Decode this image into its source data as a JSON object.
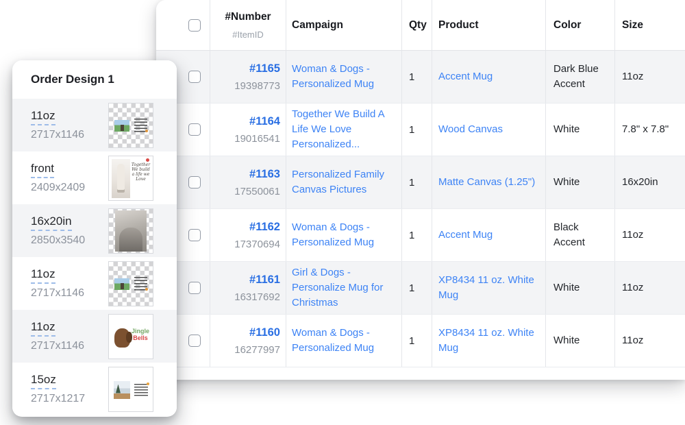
{
  "panel": {
    "title": "Order Design 1",
    "items": [
      {
        "label": "11oz",
        "dims": "2717x1146",
        "thumb": "transparent"
      },
      {
        "label": "front",
        "dims": "2409x2409",
        "thumb": "front",
        "thumb_text": "Together We build a life we Love"
      },
      {
        "label": "16x20in",
        "dims": "2850x3540",
        "thumb": "photo"
      },
      {
        "label": "11oz",
        "dims": "2717x1146",
        "thumb": "transparent"
      },
      {
        "label": "11oz",
        "dims": "2717x1146",
        "thumb": "jingle",
        "thumb_text_1": "Jingle",
        "thumb_text_2": "Bells"
      },
      {
        "label": "15oz",
        "dims": "2717x1217",
        "thumb": "scene"
      }
    ]
  },
  "table": {
    "columns": {
      "number": "#Number",
      "item_id": "#ItemID",
      "campaign": "Campaign",
      "qty": "Qty",
      "product": "Product",
      "color": "Color",
      "size": "Size"
    },
    "rows": [
      {
        "number": "#1165",
        "item_id": "19398773",
        "campaign": "Woman & Dogs - Personalized Mug",
        "qty": "1",
        "product": "Accent Mug",
        "color": "Dark Blue Accent",
        "size": "11oz"
      },
      {
        "number": "#1164",
        "item_id": "19016541",
        "campaign": "Together We Build A Life We Love Personalized...",
        "qty": "1",
        "product": "Wood Canvas",
        "color": "White",
        "size": "7.8\" x 7.8\""
      },
      {
        "number": "#1163",
        "item_id": "17550061",
        "campaign": "Personalized Family Canvas Pictures",
        "qty": "1",
        "product": "Matte Canvas (1.25\")",
        "color": "White",
        "size": "16x20in"
      },
      {
        "number": "#1162",
        "item_id": "17370694",
        "campaign": "Woman & Dogs - Personalized Mug",
        "qty": "1",
        "product": "Accent Mug",
        "color": "Black Accent",
        "size": "11oz"
      },
      {
        "number": "#1161",
        "item_id": "16317692",
        "campaign": "Girl & Dogs - Personalize Mug for Christmas",
        "qty": "1",
        "product": "XP8434 11 oz. White Mug",
        "color": "White",
        "size": "11oz"
      },
      {
        "number": "#1160",
        "item_id": "16277997",
        "campaign": "Woman & Dogs - Personalized Mug",
        "qty": "1",
        "product": "XP8434 11 oz. White Mug",
        "color": "White",
        "size": "11oz"
      }
    ]
  },
  "colors": {
    "number_link": "#2a6fe3",
    "link": "#3d83f5",
    "row_stripe": "#f3f4f6",
    "divider": "#e4e6ea",
    "muted_text": "#8c929b",
    "dashed_underline": "#9dbce8"
  }
}
